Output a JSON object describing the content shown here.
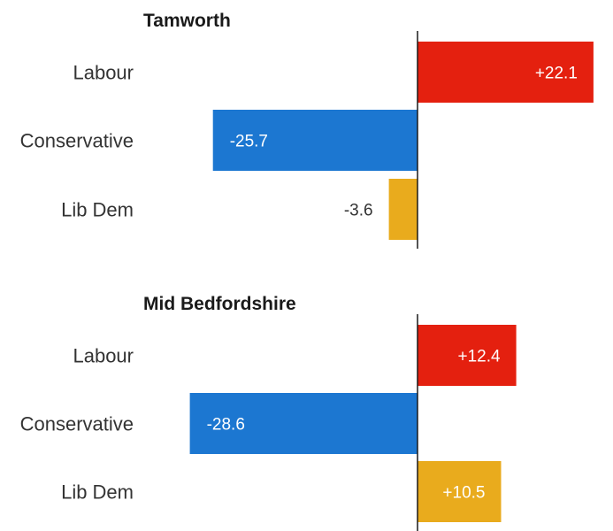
{
  "chart_data": [
    {
      "type": "bar",
      "orientation": "horizontal",
      "title": "Tamworth",
      "categories": [
        "Labour",
        "Conservative",
        "Lib Dem"
      ],
      "values": [
        22.1,
        -25.7,
        -3.6
      ],
      "value_labels": [
        "+22.1",
        "-25.7",
        "-3.6"
      ],
      "colors": [
        "#e4200f",
        "#1c77d1",
        "#e9ab1d"
      ],
      "grid": false
    },
    {
      "type": "bar",
      "orientation": "horizontal",
      "title": "Mid Bedfordshire",
      "categories": [
        "Labour",
        "Conservative",
        "Lib Dem"
      ],
      "values": [
        12.4,
        -28.6,
        10.5
      ],
      "value_labels": [
        "+12.4",
        "-28.6",
        "+10.5"
      ],
      "colors": [
        "#e4200f",
        "#1c77d1",
        "#e9ab1d"
      ],
      "grid": false
    }
  ]
}
